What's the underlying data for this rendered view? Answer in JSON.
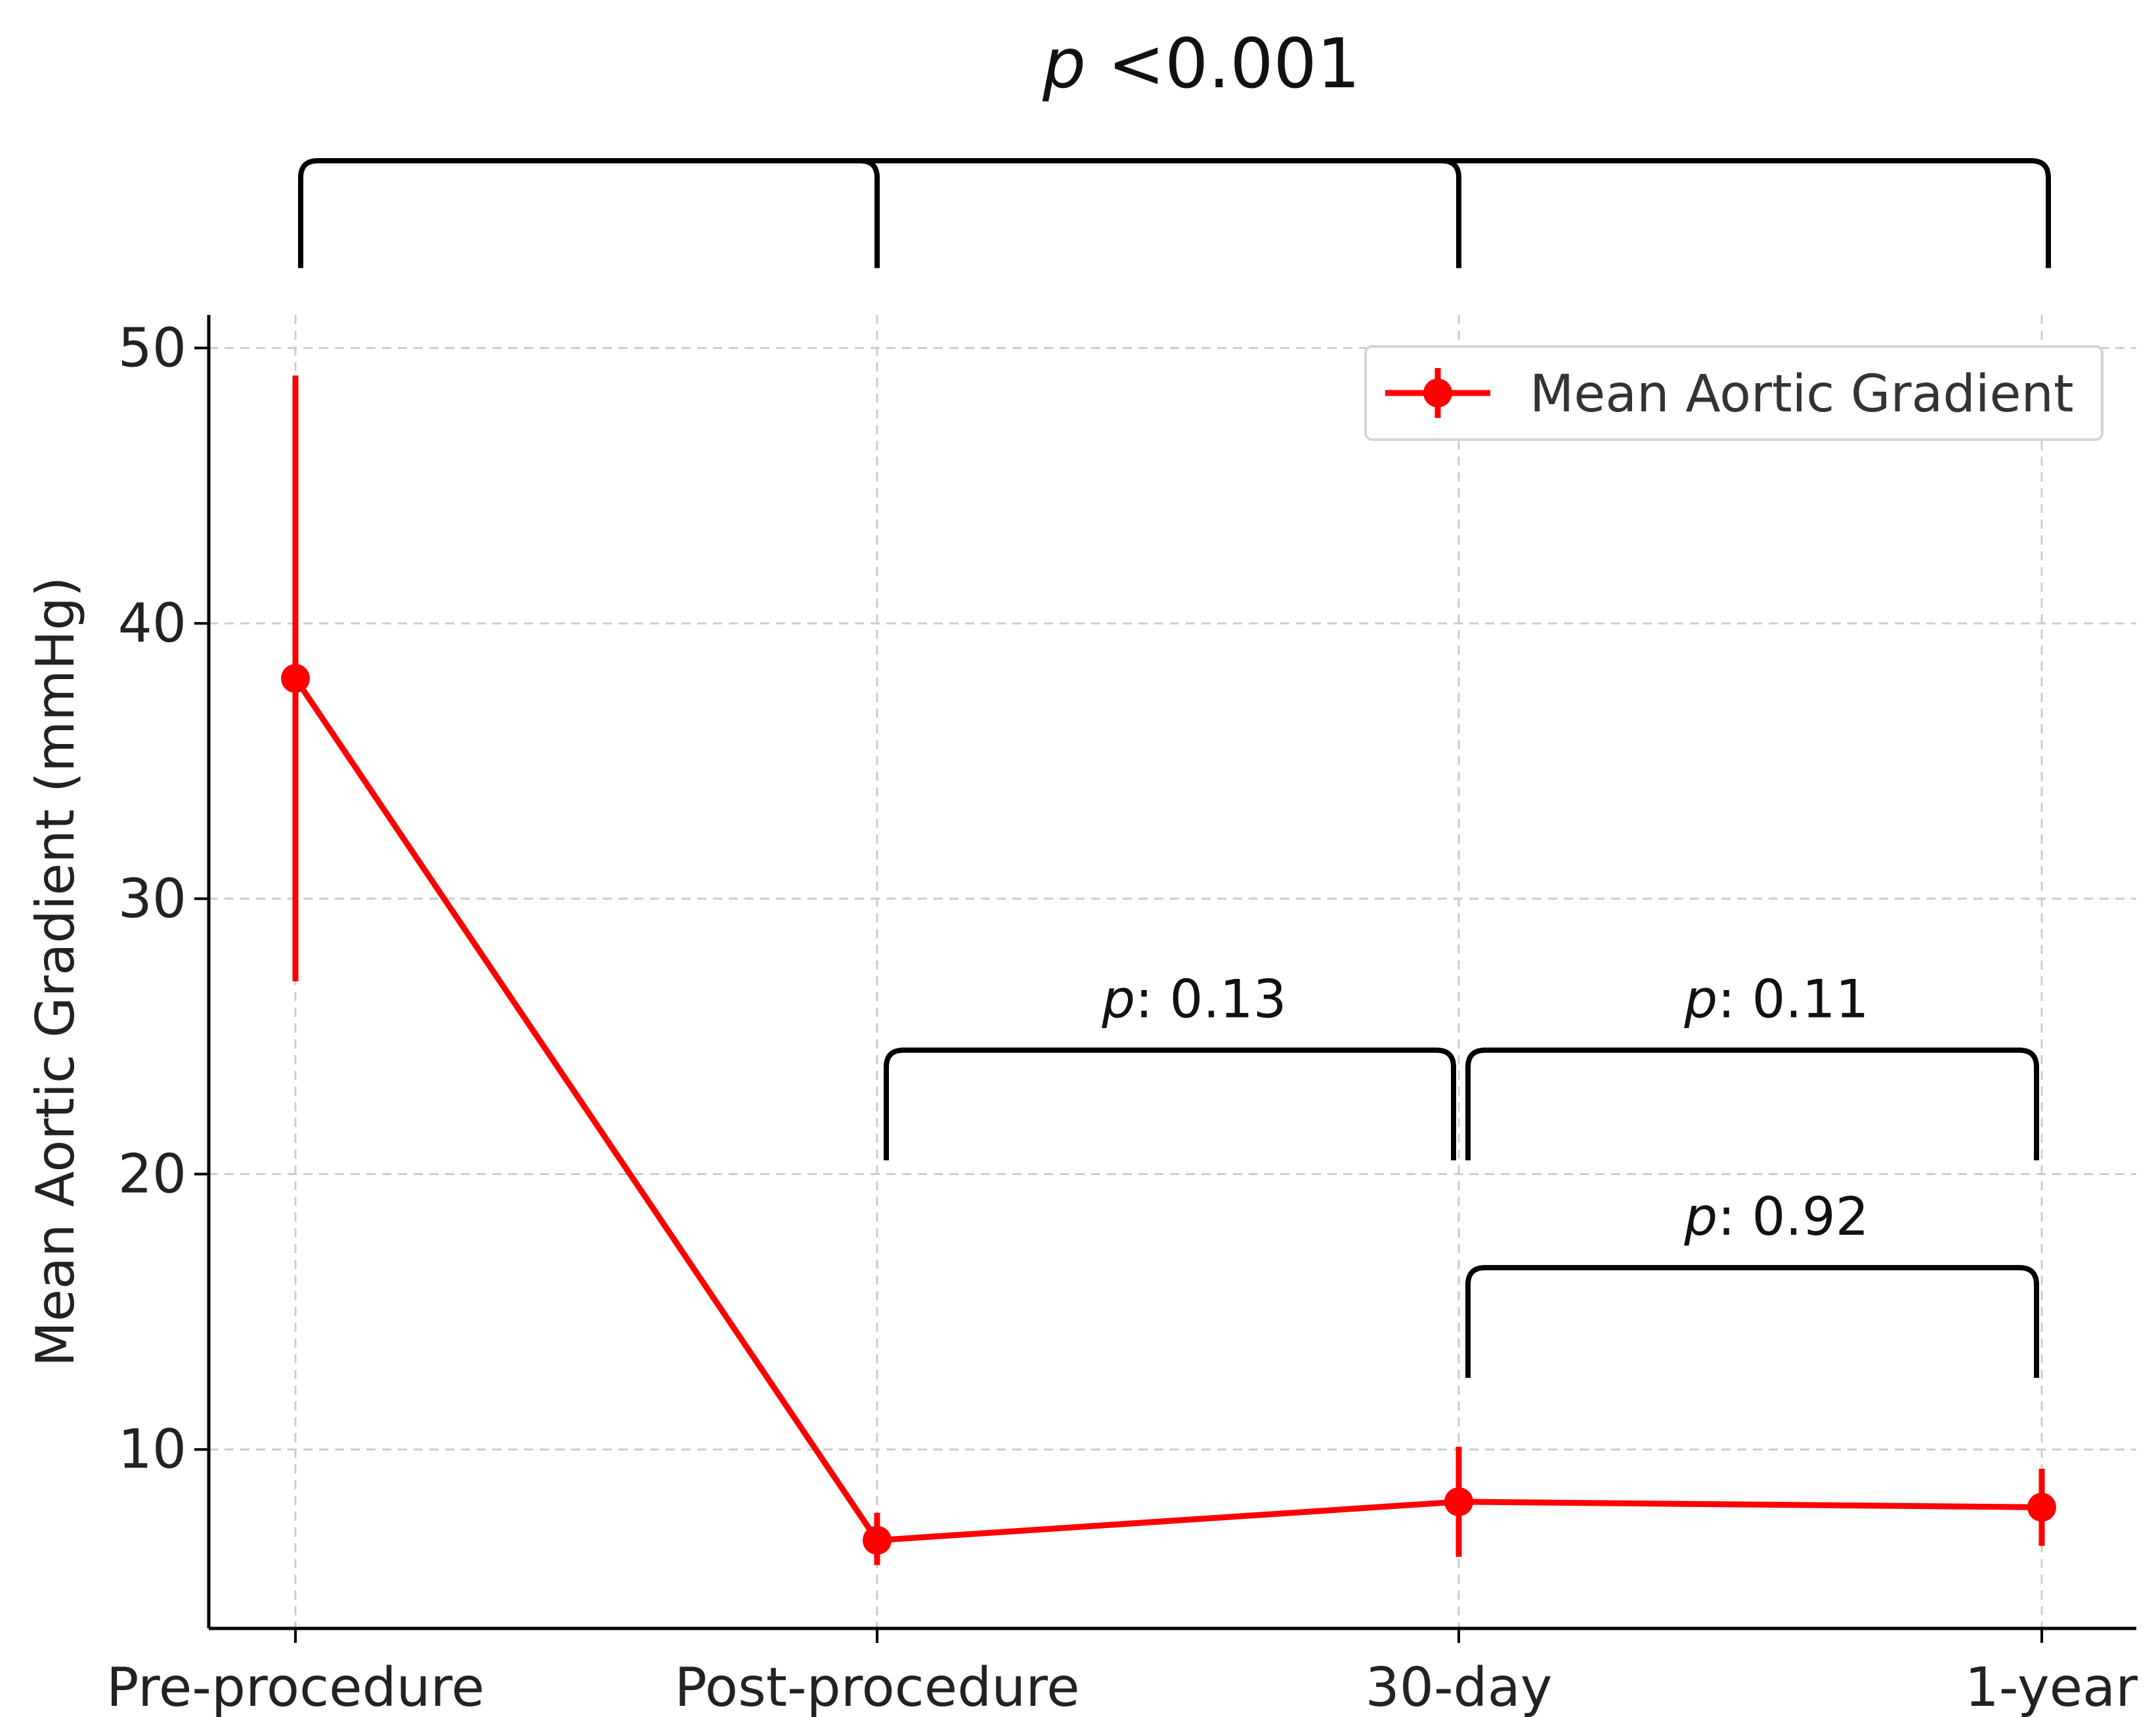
{
  "chart_data": {
    "type": "line",
    "categories": [
      "Pre-procedure",
      "Post-procedure",
      "30-day",
      "1-year"
    ],
    "series": [
      {
        "name": "Mean Aortic Gradient",
        "color": "#ff0000",
        "values": [
          38,
          6.7,
          8.1,
          7.9
        ],
        "error_low": [
          27,
          5.8,
          6.1,
          6.5
        ],
        "error_high": [
          49,
          7.7,
          10.1,
          9.3
        ]
      }
    ],
    "ylabel": "Mean Aortic Gradient (mmHg)",
    "xlabel": "",
    "ylim": [
      3.5,
      51.2
    ],
    "yticks": [
      10,
      20,
      30,
      40,
      50
    ],
    "grid": true,
    "legend_position": "top-right",
    "annotations": [
      {
        "italic": "p",
        "text": " <0.001",
        "from": "Pre-procedure",
        "to": "1-year",
        "level": 56.8,
        "drop": 52.9,
        "drops_at": [
          "Pre-procedure",
          "Post-procedure",
          "30-day",
          "1-year"
        ]
      },
      {
        "italic": "p",
        "text": ": 0.13",
        "from": "Post-procedure",
        "to": "30-day",
        "level": 24.5,
        "drop": 20.5
      },
      {
        "italic": "p",
        "text": ": 0.11",
        "from": "30-day",
        "to": "1-year",
        "level": 24.5,
        "drop": 20.5
      },
      {
        "italic": "p",
        "text": ": 0.92",
        "from": "30-day",
        "to": "1-year",
        "level": 16.6,
        "drop": 12.6
      }
    ]
  }
}
